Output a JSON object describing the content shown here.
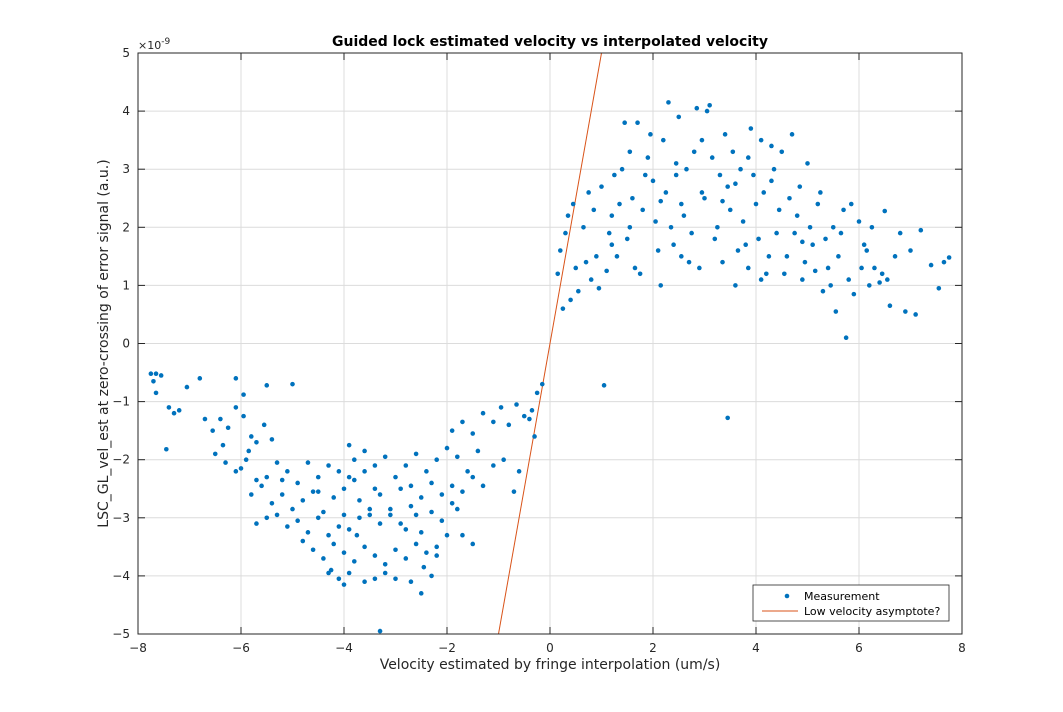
{
  "chart_data": {
    "type": "scatter",
    "title": "Guided lock estimated velocity vs interpolated velocity",
    "xlabel": "Velocity estimated by fringe interpolation (um/s)",
    "ylabel": "LSC_GL_vel_est at zero-crossing of error signal (a.u.)",
    "y_exponent_label": "×10",
    "y_exponent_power": "-9",
    "xlim": [
      -8,
      8
    ],
    "ylim": [
      -5,
      5
    ],
    "xticks": [
      "-8",
      "-6",
      "-4",
      "-2",
      "0",
      "2",
      "4",
      "6",
      "8"
    ],
    "yticks": [
      "-5",
      "-4",
      "-3",
      "-2",
      "-1",
      "0",
      "1",
      "2",
      "3",
      "4",
      "5"
    ],
    "grid": true,
    "legend_position": "bottom-right",
    "colors": {
      "measurement": "#0072bd",
      "asymptote": "#d95319"
    },
    "series": [
      {
        "name": "Measurement",
        "kind": "scatter",
        "points": [
          [
            -7.75,
            -0.52
          ],
          [
            -7.65,
            -0.52
          ],
          [
            -7.7,
            -0.65
          ],
          [
            -7.65,
            -0.85
          ],
          [
            -7.55,
            -0.55
          ],
          [
            -7.4,
            -1.1
          ],
          [
            -7.3,
            -1.2
          ],
          [
            -7.2,
            -1.15
          ],
          [
            -7.05,
            -0.75
          ],
          [
            -6.8,
            -0.6
          ],
          [
            -7.45,
            -1.82
          ],
          [
            -6.1,
            -0.6
          ],
          [
            -5.95,
            -0.88
          ],
          [
            -5.5,
            -0.72
          ],
          [
            -5.0,
            -0.7
          ],
          [
            -6.7,
            -1.3
          ],
          [
            -6.55,
            -1.5
          ],
          [
            -6.4,
            -1.3
          ],
          [
            -6.25,
            -1.45
          ],
          [
            -6.1,
            -1.1
          ],
          [
            -5.95,
            -1.25
          ],
          [
            -5.8,
            -1.6
          ],
          [
            -5.7,
            -1.7
          ],
          [
            -5.55,
            -1.4
          ],
          [
            -5.4,
            -1.65
          ],
          [
            -6.5,
            -1.9
          ],
          [
            -6.3,
            -2.05
          ],
          [
            -6.1,
            -2.2
          ],
          [
            -5.9,
            -2.0
          ],
          [
            -5.7,
            -2.35
          ],
          [
            -5.5,
            -2.3
          ],
          [
            -5.3,
            -2.05
          ],
          [
            -5.1,
            -2.2
          ],
          [
            -4.9,
            -2.4
          ],
          [
            -4.7,
            -2.05
          ],
          [
            -4.5,
            -2.3
          ],
          [
            -4.3,
            -2.1
          ],
          [
            -4.1,
            -2.2
          ],
          [
            -3.9,
            -1.75
          ],
          [
            -6.0,
            -2.15
          ],
          [
            -5.8,
            -2.6
          ],
          [
            -5.6,
            -2.45
          ],
          [
            -5.4,
            -2.75
          ],
          [
            -5.2,
            -2.6
          ],
          [
            -5.0,
            -2.85
          ],
          [
            -4.8,
            -2.7
          ],
          [
            -4.6,
            -2.55
          ],
          [
            -4.4,
            -2.9
          ],
          [
            -4.2,
            -2.65
          ],
          [
            -4.0,
            -2.5
          ],
          [
            -3.8,
            -2.35
          ],
          [
            -3.6,
            -2.2
          ],
          [
            -3.4,
            -2.5
          ],
          [
            -5.7,
            -3.1
          ],
          [
            -5.5,
            -3.0
          ],
          [
            -5.3,
            -2.95
          ],
          [
            -5.1,
            -3.15
          ],
          [
            -4.9,
            -3.05
          ],
          [
            -4.7,
            -3.25
          ],
          [
            -4.5,
            -3.0
          ],
          [
            -4.3,
            -3.3
          ],
          [
            -4.1,
            -3.15
          ],
          [
            -3.9,
            -3.2
          ],
          [
            -3.7,
            -3.0
          ],
          [
            -3.5,
            -2.95
          ],
          [
            -3.3,
            -3.1
          ],
          [
            -3.1,
            -2.85
          ],
          [
            -4.8,
            -3.4
          ],
          [
            -4.6,
            -3.55
          ],
          [
            -4.4,
            -3.7
          ],
          [
            -4.2,
            -3.45
          ],
          [
            -4.0,
            -3.6
          ],
          [
            -3.8,
            -3.75
          ],
          [
            -3.6,
            -3.5
          ],
          [
            -3.4,
            -3.65
          ],
          [
            -3.2,
            -3.8
          ],
          [
            -3.0,
            -3.55
          ],
          [
            -2.8,
            -3.7
          ],
          [
            -2.6,
            -3.45
          ],
          [
            -2.4,
            -3.6
          ],
          [
            -4.3,
            -3.95
          ],
          [
            -4.1,
            -4.05
          ],
          [
            -3.9,
            -3.95
          ],
          [
            -3.6,
            -4.1
          ],
          [
            -3.4,
            -4.05
          ],
          [
            -3.2,
            -3.95
          ],
          [
            -3.0,
            -4.05
          ],
          [
            -2.7,
            -4.1
          ],
          [
            -2.5,
            -4.3
          ],
          [
            -2.3,
            -4.0
          ],
          [
            -4.0,
            -4.15
          ],
          [
            -3.3,
            -4.95
          ],
          [
            -4.25,
            -3.9
          ],
          [
            -3.9,
            -2.3
          ],
          [
            -3.7,
            -2.7
          ],
          [
            -3.5,
            -2.85
          ],
          [
            -3.3,
            -2.6
          ],
          [
            -3.1,
            -2.95
          ],
          [
            -2.9,
            -3.1
          ],
          [
            -2.7,
            -2.8
          ],
          [
            -2.5,
            -3.25
          ],
          [
            -2.3,
            -2.9
          ],
          [
            -2.1,
            -3.05
          ],
          [
            -1.9,
            -2.75
          ],
          [
            -1.7,
            -3.3
          ],
          [
            -1.5,
            -3.45
          ],
          [
            -3.8,
            -2.0
          ],
          [
            -3.6,
            -1.85
          ],
          [
            -3.4,
            -2.1
          ],
          [
            -3.2,
            -1.95
          ],
          [
            -3.0,
            -2.3
          ],
          [
            -2.8,
            -2.1
          ],
          [
            -2.6,
            -1.9
          ],
          [
            -2.4,
            -2.2
          ],
          [
            -2.2,
            -2.0
          ],
          [
            -2.0,
            -1.8
          ],
          [
            -1.8,
            -1.95
          ],
          [
            -1.6,
            -2.2
          ],
          [
            -1.4,
            -1.85
          ],
          [
            -2.9,
            -2.5
          ],
          [
            -2.7,
            -2.45
          ],
          [
            -2.5,
            -2.65
          ],
          [
            -2.3,
            -2.4
          ],
          [
            -2.1,
            -2.6
          ],
          [
            -1.9,
            -2.45
          ],
          [
            -1.7,
            -2.55
          ],
          [
            -1.5,
            -2.3
          ],
          [
            -1.3,
            -2.45
          ],
          [
            -1.1,
            -2.1
          ],
          [
            -0.9,
            -2.0
          ],
          [
            -0.7,
            -2.55
          ],
          [
            -0.6,
            -2.2
          ],
          [
            -1.9,
            -1.5
          ],
          [
            -1.7,
            -1.35
          ],
          [
            -1.5,
            -1.55
          ],
          [
            -1.3,
            -1.2
          ],
          [
            -1.1,
            -1.35
          ],
          [
            -0.95,
            -1.1
          ],
          [
            -0.8,
            -1.4
          ],
          [
            -0.65,
            -1.05
          ],
          [
            -0.5,
            -1.25
          ],
          [
            -0.35,
            -1.15
          ],
          [
            -0.25,
            -0.85
          ],
          [
            -0.15,
            -0.7
          ],
          [
            -0.4,
            -1.3
          ],
          [
            -0.3,
            -1.6
          ],
          [
            -2.8,
            -3.2
          ],
          [
            -2.6,
            -2.95
          ],
          [
            -2.2,
            -3.5
          ],
          [
            -2.0,
            -3.3
          ],
          [
            -1.8,
            -2.85
          ],
          [
            -4.5,
            -2.55
          ],
          [
            -5.2,
            -2.35
          ],
          [
            -4.0,
            -2.95
          ],
          [
            -3.75,
            -3.3
          ],
          [
            -2.45,
            -3.85
          ],
          [
            -2.2,
            -3.65
          ],
          [
            -5.85,
            -1.85
          ],
          [
            -6.35,
            -1.75
          ],
          [
            0.15,
            1.2
          ],
          [
            0.2,
            1.6
          ],
          [
            0.3,
            1.9
          ],
          [
            0.35,
            2.2
          ],
          [
            0.45,
            2.4
          ],
          [
            0.55,
            0.9
          ],
          [
            0.5,
            1.3
          ],
          [
            0.4,
            0.75
          ],
          [
            0.25,
            0.6
          ],
          [
            0.65,
            2.0
          ],
          [
            0.75,
            2.6
          ],
          [
            0.8,
            1.1
          ],
          [
            0.9,
            1.5
          ],
          [
            1.0,
            2.7
          ],
          [
            1.05,
            -0.72
          ],
          [
            0.95,
            0.95
          ],
          [
            1.1,
            1.25
          ],
          [
            1.15,
            1.9
          ],
          [
            1.2,
            2.2
          ],
          [
            1.3,
            1.5
          ],
          [
            1.4,
            3.0
          ],
          [
            1.45,
            3.8
          ],
          [
            1.5,
            1.8
          ],
          [
            1.6,
            2.5
          ],
          [
            1.7,
            3.8
          ],
          [
            1.75,
            1.2
          ],
          [
            1.8,
            2.3
          ],
          [
            1.9,
            3.2
          ],
          [
            2.0,
            2.8
          ],
          [
            2.1,
            1.6
          ],
          [
            2.2,
            3.5
          ],
          [
            2.3,
            4.15
          ],
          [
            2.35,
            2.0
          ],
          [
            2.45,
            2.9
          ],
          [
            2.5,
            3.9
          ],
          [
            2.6,
            2.2
          ],
          [
            2.7,
            1.4
          ],
          [
            2.8,
            3.3
          ],
          [
            2.85,
            4.05
          ],
          [
            2.95,
            2.6
          ],
          [
            3.05,
            4.0
          ],
          [
            3.1,
            4.1
          ],
          [
            3.2,
            1.8
          ],
          [
            3.3,
            2.9
          ],
          [
            3.4,
            3.6
          ],
          [
            3.5,
            2.3
          ],
          [
            3.6,
            1.0
          ],
          [
            3.7,
            3.0
          ],
          [
            3.8,
            1.7
          ],
          [
            3.9,
            3.7
          ],
          [
            4.0,
            2.4
          ],
          [
            4.1,
            3.5
          ],
          [
            4.2,
            1.2
          ],
          [
            4.3,
            2.8
          ],
          [
            4.4,
            1.9
          ],
          [
            4.5,
            3.3
          ],
          [
            4.6,
            1.5
          ],
          [
            4.7,
            3.6
          ],
          [
            4.8,
            2.2
          ],
          [
            4.9,
            1.1
          ],
          [
            5.0,
            3.1
          ],
          [
            5.1,
            1.7
          ],
          [
            5.2,
            2.4
          ],
          [
            5.3,
            0.9
          ],
          [
            5.4,
            1.3
          ],
          [
            5.5,
            2.0
          ],
          [
            5.6,
            1.5
          ],
          [
            5.7,
            2.3
          ],
          [
            5.8,
            1.1
          ],
          [
            5.9,
            0.85
          ],
          [
            6.0,
            2.1
          ],
          [
            6.1,
            1.7
          ],
          [
            6.2,
            1.0
          ],
          [
            6.3,
            1.3
          ],
          [
            6.5,
            2.28
          ],
          [
            6.6,
            0.65
          ],
          [
            6.7,
            1.5
          ],
          [
            6.8,
            1.9
          ],
          [
            6.9,
            0.55
          ],
          [
            7.0,
            1.6
          ],
          [
            7.1,
            0.5
          ],
          [
            7.2,
            1.95
          ],
          [
            7.4,
            1.35
          ],
          [
            7.55,
            0.95
          ],
          [
            7.65,
            1.4
          ],
          [
            7.75,
            1.48
          ],
          [
            5.75,
            0.1
          ],
          [
            5.55,
            0.55
          ],
          [
            3.45,
            -1.28
          ],
          [
            6.4,
            1.05
          ],
          [
            1.2,
            1.7
          ],
          [
            1.35,
            2.4
          ],
          [
            1.55,
            2.0
          ],
          [
            1.65,
            1.3
          ],
          [
            1.85,
            2.9
          ],
          [
            2.05,
            2.1
          ],
          [
            2.15,
            1.0
          ],
          [
            2.25,
            2.6
          ],
          [
            2.4,
            1.7
          ],
          [
            2.55,
            2.4
          ],
          [
            2.65,
            3.0
          ],
          [
            2.75,
            1.9
          ],
          [
            2.9,
            1.3
          ],
          [
            3.0,
            2.5
          ],
          [
            3.15,
            3.2
          ],
          [
            3.25,
            2.0
          ],
          [
            3.35,
            1.4
          ],
          [
            3.45,
            2.7
          ],
          [
            3.55,
            3.3
          ],
          [
            3.65,
            1.6
          ],
          [
            3.75,
            2.1
          ],
          [
            3.85,
            1.3
          ],
          [
            3.95,
            2.9
          ],
          [
            4.05,
            1.8
          ],
          [
            4.15,
            2.6
          ],
          [
            4.25,
            1.5
          ],
          [
            4.35,
            3.0
          ],
          [
            4.45,
            2.3
          ],
          [
            4.55,
            1.2
          ],
          [
            4.65,
            2.5
          ],
          [
            4.75,
            1.9
          ],
          [
            4.85,
            2.7
          ],
          [
            4.95,
            1.4
          ],
          [
            5.05,
            2.0
          ],
          [
            5.15,
            1.25
          ],
          [
            5.25,
            2.6
          ],
          [
            5.35,
            1.8
          ],
          [
            5.45,
            1.0
          ],
          [
            5.65,
            1.9
          ],
          [
            5.85,
            2.4
          ],
          [
            6.05,
            1.3
          ],
          [
            6.15,
            1.6
          ],
          [
            6.25,
            2.0
          ],
          [
            6.45,
            1.2
          ],
          [
            6.55,
            1.1
          ],
          [
            0.7,
            1.4
          ],
          [
            0.85,
            2.3
          ],
          [
            1.25,
            2.9
          ],
          [
            1.55,
            3.3
          ],
          [
            1.95,
            3.6
          ],
          [
            2.45,
            3.1
          ],
          [
            2.95,
            3.5
          ],
          [
            3.35,
            2.45
          ],
          [
            3.85,
            3.2
          ],
          [
            4.3,
            3.4
          ],
          [
            2.15,
            2.45
          ],
          [
            2.55,
            1.5
          ],
          [
            3.6,
            2.75
          ],
          [
            4.1,
            1.1
          ],
          [
            4.9,
            1.75
          ]
        ]
      },
      {
        "name": "Low velocity asymptote?",
        "kind": "line",
        "points": [
          [
            -1.0,
            -5.0
          ],
          [
            1.0,
            5.0
          ]
        ]
      }
    ]
  }
}
